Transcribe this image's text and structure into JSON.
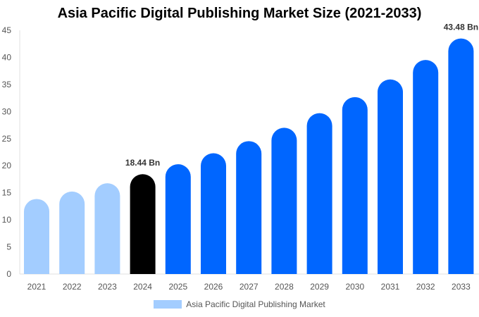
{
  "chart_data": {
    "type": "bar",
    "title": "Asia Pacific Digital Publishing Market Size (2021-2033)",
    "categories": [
      "2021",
      "2022",
      "2023",
      "2024",
      "2025",
      "2026",
      "2027",
      "2028",
      "2029",
      "2030",
      "2031",
      "2032",
      "2033"
    ],
    "series": [
      {
        "name": "Asia Pacific Digital Publishing Market",
        "values": [
          13.86,
          15.24,
          16.76,
          18.44,
          20.28,
          22.31,
          24.54,
          27.0,
          29.7,
          32.66,
          35.93,
          39.52,
          43.48
        ]
      }
    ],
    "data_labels": {
      "2024": "18.44 Bn",
      "2033": "43.48 Bn"
    },
    "ylim": [
      0,
      45
    ],
    "yticks": [
      0,
      5,
      10,
      15,
      20,
      25,
      30,
      35,
      40,
      45
    ],
    "grid": false,
    "legend_placement": "bottom",
    "colors": {
      "historical": "#a3cdff",
      "base_year": "#000000",
      "forecast": "#0066ff"
    }
  }
}
